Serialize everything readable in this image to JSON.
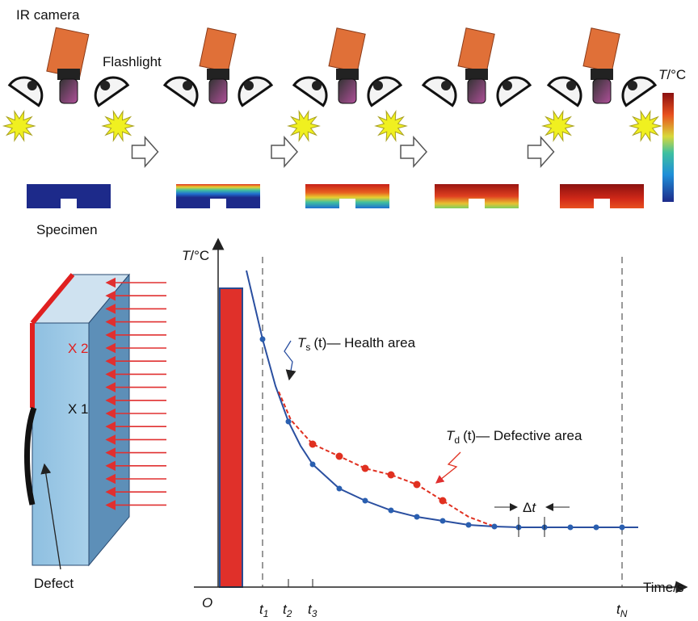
{
  "top": {
    "ir_camera": "IR camera",
    "flashlight": "Flashlight",
    "specimen": "Specimen",
    "colorbar_label": {
      "symbol": "T",
      "unit": "/°C"
    }
  },
  "block": {
    "x2": "X 2",
    "x1": "X 1",
    "defect": "Defect"
  },
  "plot": {
    "y_label": {
      "symbol": "T",
      "unit": "/°C"
    },
    "x_label": "Time/s",
    "origin": "O",
    "ticks": [
      {
        "symbol": "t",
        "sub": "1"
      },
      {
        "symbol": "t",
        "sub": "2"
      },
      {
        "symbol": "t",
        "sub": "3"
      },
      {
        "symbol": "t",
        "sub": "N"
      }
    ],
    "health": {
      "symbol": "T",
      "sub": "s",
      "arg": "(t)",
      "text": "— Health area"
    },
    "defective": {
      "symbol": "T",
      "sub": "d",
      "arg": "(t)",
      "text": "— Defective area"
    },
    "delta": {
      "symbol": "Δ",
      "var": "t"
    }
  }
}
